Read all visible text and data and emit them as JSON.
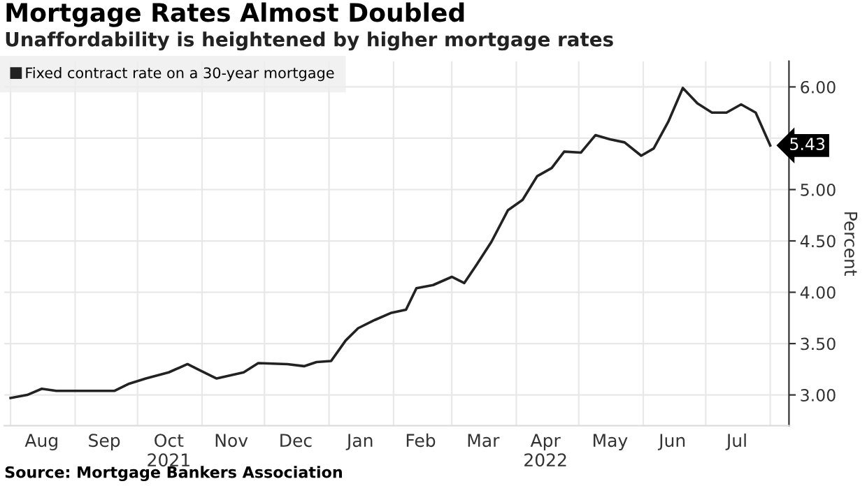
{
  "chart_data": {
    "type": "line",
    "title": "Mortgage Rates Almost Doubled",
    "subtitle": "Unaffordability is heightened by higher mortgage rates",
    "ylabel": "Percent",
    "x": [
      "2021-08-01",
      "2021-08-09",
      "2021-08-16",
      "2021-08-23",
      "2021-09-20",
      "2021-09-27",
      "2021-10-05",
      "2021-10-16",
      "2021-10-25",
      "2021-10-31",
      "2021-11-08",
      "2021-11-21",
      "2021-11-28",
      "2021-12-12",
      "2021-12-20",
      "2021-12-26",
      "2022-01-02",
      "2022-01-09",
      "2022-01-15",
      "2022-01-23",
      "2022-01-31",
      "2022-02-07",
      "2022-02-12",
      "2022-02-20",
      "2022-03-01",
      "2022-03-07",
      "2022-03-13",
      "2022-03-20",
      "2022-03-28",
      "2022-04-04",
      "2022-04-11",
      "2022-04-18",
      "2022-04-24",
      "2022-05-02",
      "2022-05-09",
      "2022-05-16",
      "2022-05-23",
      "2022-05-31",
      "2022-06-06",
      "2022-06-13",
      "2022-06-20",
      "2022-06-27",
      "2022-07-04",
      "2022-07-11",
      "2022-07-18",
      "2022-07-25",
      "2022-08-01"
    ],
    "series": [
      {
        "name": "Fixed contract rate on a 30-year mortgage",
        "color": "#222222",
        "values": [
          2.97,
          3.0,
          3.06,
          3.04,
          3.04,
          3.11,
          3.16,
          3.22,
          3.3,
          3.24,
          3.16,
          3.22,
          3.31,
          3.3,
          3.28,
          3.32,
          3.33,
          3.53,
          3.65,
          3.73,
          3.8,
          3.83,
          4.04,
          4.07,
          4.15,
          4.09,
          4.27,
          4.49,
          4.8,
          4.9,
          5.13,
          5.21,
          5.37,
          5.36,
          5.53,
          5.49,
          5.46,
          5.33,
          5.4,
          5.66,
          5.99,
          5.84,
          5.75,
          5.75,
          5.83,
          5.75,
          5.43
        ]
      }
    ],
    "xlim": [
      "2021-07-29",
      "2022-08-10"
    ],
    "xticks": [
      {
        "value": "2021-08-01",
        "label": null
      },
      {
        "value": "2021-08-16",
        "label": "Aug"
      },
      {
        "value": "2021-09-01",
        "label": null
      },
      {
        "value": "2021-09-15",
        "label": "Sep"
      },
      {
        "value": "2021-10-01",
        "label": null
      },
      {
        "value": "2021-10-16",
        "label": "Oct\n2021"
      },
      {
        "value": "2021-11-01",
        "label": null
      },
      {
        "value": "2021-11-15",
        "label": "Nov"
      },
      {
        "value": "2021-12-01",
        "label": null
      },
      {
        "value": "2021-12-16",
        "label": "Dec"
      },
      {
        "value": "2022-01-01",
        "label": null
      },
      {
        "value": "2022-01-16",
        "label": "Jan"
      },
      {
        "value": "2022-02-01",
        "label": null
      },
      {
        "value": "2022-02-14",
        "label": "Feb"
      },
      {
        "value": "2022-03-01",
        "label": null
      },
      {
        "value": "2022-03-16",
        "label": "Mar"
      },
      {
        "value": "2022-04-01",
        "label": null
      },
      {
        "value": "2022-04-15",
        "label": "Apr\n2022"
      },
      {
        "value": "2022-05-01",
        "label": null
      },
      {
        "value": "2022-05-16",
        "label": "May"
      },
      {
        "value": "2022-06-01",
        "label": null
      },
      {
        "value": "2022-06-15",
        "label": "Jun"
      },
      {
        "value": "2022-07-01",
        "label": null
      },
      {
        "value": "2022-07-16",
        "label": "Jul"
      },
      {
        "value": "2022-08-01",
        "label": null
      }
    ],
    "ylim": [
      2.7,
      6.25
    ],
    "yticks": [
      {
        "value": 3,
        "label": "3.00"
      },
      {
        "value": 3.5,
        "label": "3.50"
      },
      {
        "value": 4,
        "label": "4.00"
      },
      {
        "value": 4.5,
        "label": "4.50"
      },
      {
        "value": 5,
        "label": "5.00"
      },
      {
        "value": 5.5,
        "label": null
      },
      {
        "value": 6,
        "label": "6.00"
      }
    ],
    "grid": true,
    "legend": "top left",
    "marker": "none",
    "line_style": "solid",
    "annotations": [
      {
        "text": "5.43",
        "x": "2022-08-01",
        "y": 5.43
      },
      "Source: Mortgage Bankers Association"
    ]
  }
}
